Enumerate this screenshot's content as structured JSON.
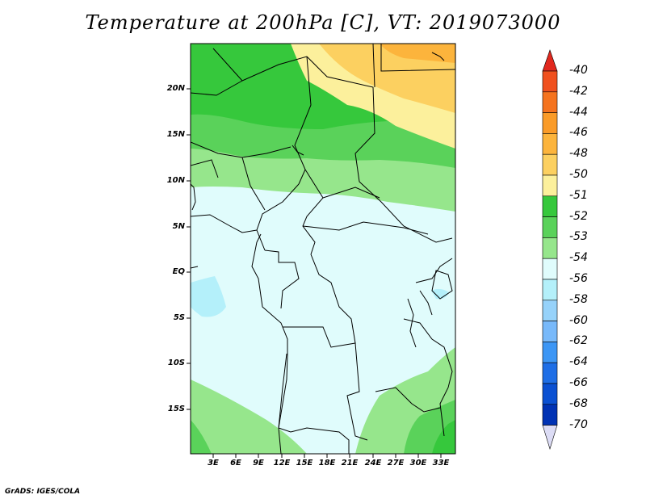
{
  "title": "Temperature at 200hPa [C], VT: 2019073000",
  "footer": "GrADS: IGES/COLA",
  "map": {
    "latitude_labels": [
      "20N",
      "15N",
      "10N",
      "5N",
      "EQ",
      "5S",
      "10S",
      "15S"
    ],
    "longitude_labels": [
      "3E",
      "6E",
      "9E",
      "12E",
      "15E",
      "18E",
      "21E",
      "24E",
      "27E",
      "30E",
      "33E"
    ]
  },
  "colorbar": {
    "labels": [
      "-40",
      "-42",
      "-44",
      "-46",
      "-48",
      "-50",
      "-51",
      "-52",
      "-53",
      "-54",
      "-56",
      "-58",
      "-60",
      "-62",
      "-64",
      "-66",
      "-68",
      "-70"
    ],
    "colors": [
      "#e1281e",
      "#f0501e",
      "#f5731e",
      "#fa9b28",
      "#fcb43c",
      "#fcd060",
      "#fcf09c",
      "#36c83c",
      "#5ad25a",
      "#96e68c",
      "#e0fcfc",
      "#b4f0fa",
      "#96d2fa",
      "#78b9fa",
      "#3c96f5",
      "#1e6ee6",
      "#0a50d2",
      "#0032b4",
      "#0a0a7a",
      "#dcdcf5"
    ]
  }
}
